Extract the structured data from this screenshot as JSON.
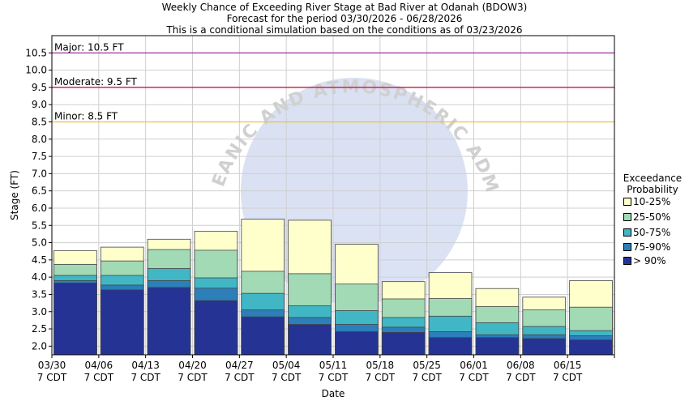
{
  "title": {
    "line1": "Weekly Chance of Exceeding River Stage at Bad River at Odanah (BDOW3)",
    "line2": "Forecast for the period 03/30/2026 - 06/28/2026",
    "line3": "This is a conditional simulation based on the conditions as of 03/23/2026"
  },
  "watermark": "NATIONAL OCEANIC AND ATMOSPHERIC ADMINISTRATION",
  "legend": {
    "title_line1": "Exceedance",
    "title_line2": "Probability",
    "items": [
      {
        "label": "10-25%",
        "color": "#ffffcc"
      },
      {
        "label": "25-50%",
        "color": "#a1dab4"
      },
      {
        "label": "50-75%",
        "color": "#41b6c4"
      },
      {
        "label": "75-90%",
        "color": "#2c7fb8"
      },
      {
        "label": "> 90%",
        "color": "#253494"
      }
    ]
  },
  "chart_data": {
    "type": "bar",
    "xlabel": "Date",
    "ylabel": "Stage (FT)",
    "ylim": [
      1.75,
      11.0
    ],
    "yticks": [
      "2.0",
      "2.5",
      "3.0",
      "3.5",
      "4.0",
      "4.5",
      "5.0",
      "5.5",
      "6.0",
      "6.5",
      "7.0",
      "7.5",
      "8.0",
      "8.5",
      "9.0",
      "9.5",
      "10.0",
      "10.5"
    ],
    "xticks": [
      {
        "date": "03/30",
        "tz": "7 CDT"
      },
      {
        "date": "04/06",
        "tz": "7 CDT"
      },
      {
        "date": "04/13",
        "tz": "7 CDT"
      },
      {
        "date": "04/20",
        "tz": "7 CDT"
      },
      {
        "date": "04/27",
        "tz": "7 CDT"
      },
      {
        "date": "05/04",
        "tz": "7 CDT"
      },
      {
        "date": "05/11",
        "tz": "7 CDT"
      },
      {
        "date": "05/18",
        "tz": "7 CDT"
      },
      {
        "date": "05/25",
        "tz": "7 CDT"
      },
      {
        "date": "06/01",
        "tz": "7 CDT"
      },
      {
        "date": "06/08",
        "tz": "7 CDT"
      },
      {
        "date": "06/15",
        "tz": "7 CDT"
      }
    ],
    "thresholds": [
      {
        "label": "Major: 10.5 FT",
        "value": 10.5,
        "color": "#a020a0"
      },
      {
        "label": "Moderate: 9.5 FT",
        "value": 9.5,
        "color": "#cc0033"
      },
      {
        "label": "Minor: 8.5 FT",
        "value": 8.5,
        "color": "#f0c040"
      }
    ],
    "series_order": [
      "> 90%",
      "75-90%",
      "50-75%",
      "25-50%",
      "10-25%"
    ],
    "bars": [
      {
        "week": "03/30",
        "p90": 3.83,
        "p75_90": 3.9,
        "p50_75": 4.05,
        "p25_50": 4.37,
        "p10_25": 4.77
      },
      {
        "week": "04/06",
        "p90": 3.63,
        "p75_90": 3.77,
        "p50_75": 4.05,
        "p25_50": 4.47,
        "p10_25": 4.87
      },
      {
        "week": "04/13",
        "p90": 3.7,
        "p75_90": 3.9,
        "p50_75": 4.25,
        "p25_50": 4.8,
        "p10_25": 5.1
      },
      {
        "week": "04/20",
        "p90": 3.32,
        "p75_90": 3.68,
        "p50_75": 3.98,
        "p25_50": 4.78,
        "p10_25": 5.33
      },
      {
        "week": "04/27",
        "p90": 2.85,
        "p75_90": 3.05,
        "p50_75": 3.53,
        "p25_50": 4.17,
        "p10_25": 5.68
      },
      {
        "week": "05/04",
        "p90": 2.63,
        "p75_90": 2.83,
        "p50_75": 3.17,
        "p25_50": 4.1,
        "p10_25": 5.65
      },
      {
        "week": "05/11",
        "p90": 2.42,
        "p75_90": 2.63,
        "p50_75": 3.03,
        "p25_50": 3.8,
        "p10_25": 4.95
      },
      {
        "week": "05/18",
        "p90": 2.4,
        "p75_90": 2.55,
        "p50_75": 2.83,
        "p25_50": 3.37,
        "p10_25": 3.87
      },
      {
        "week": "05/25",
        "p90": 2.25,
        "p75_90": 2.42,
        "p50_75": 2.87,
        "p25_50": 3.38,
        "p10_25": 4.13
      },
      {
        "week": "06/01",
        "p90": 2.25,
        "p75_90": 2.33,
        "p50_75": 2.68,
        "p25_50": 3.15,
        "p10_25": 3.67
      },
      {
        "week": "06/08",
        "p90": 2.22,
        "p75_90": 2.33,
        "p50_75": 2.57,
        "p25_50": 3.05,
        "p10_25": 3.42
      },
      {
        "week": "06/15",
        "p90": 2.18,
        "p75_90": 2.3,
        "p50_75": 2.45,
        "p25_50": 3.13,
        "p10_25": 3.9
      }
    ]
  }
}
